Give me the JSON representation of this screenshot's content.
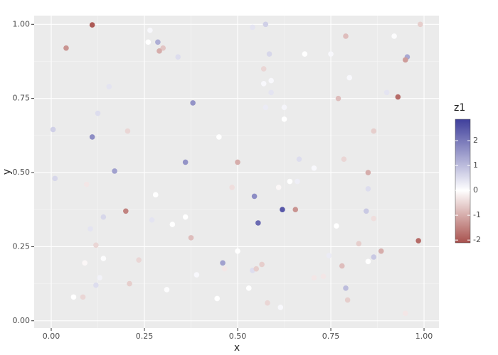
{
  "chart_data": {
    "type": "scatter",
    "xlabel": "x",
    "ylabel": "y",
    "x": [
      0.11,
      0.04,
      0.265,
      0.26,
      0.286,
      0.3,
      0.29,
      0.34,
      0.54,
      0.575,
      0.585,
      0.57,
      0.57,
      0.59,
      0.59,
      0.575,
      0.625,
      0.625,
      0.68,
      0.75,
      0.79,
      0.8,
      0.77,
      0.92,
      0.99,
      0.955,
      0.95,
      0.9,
      0.93,
      0.865,
      0.005,
      0.11,
      0.125,
      0.155,
      0.205,
      0.38,
      0.45,
      0.5,
      0.36,
      0.17,
      0.01,
      0.095,
      0.28,
      0.485,
      0.545,
      0.61,
      0.64,
      0.665,
      0.66,
      0.705,
      0.785,
      0.85,
      0.85,
      0.845,
      0.865,
      0.765,
      0.62,
      0.655,
      0.555,
      0.2,
      0.14,
      0.105,
      0.12,
      0.14,
      0.235,
      0.27,
      0.36,
      0.325,
      0.375,
      0.46,
      0.5,
      0.465,
      0.54,
      0.55,
      0.565,
      0.745,
      0.78,
      0.825,
      0.865,
      0.85,
      0.885,
      0.985,
      0.79,
      0.795,
      0.705,
      0.73,
      0.53,
      0.58,
      0.615,
      0.445,
      0.31,
      0.39,
      0.21,
      0.12,
      0.13,
      0.09,
      0.06,
      0.085,
      0.95
    ],
    "y": [
      0.998,
      0.92,
      0.98,
      0.94,
      0.94,
      0.92,
      0.91,
      0.89,
      0.99,
      1.0,
      0.9,
      0.85,
      0.8,
      0.81,
      0.77,
      0.72,
      0.72,
      0.68,
      0.9,
      0.9,
      0.96,
      0.82,
      0.75,
      0.96,
      1.0,
      0.89,
      0.88,
      0.77,
      0.755,
      0.64,
      0.645,
      0.62,
      0.7,
      0.79,
      0.64,
      0.735,
      0.62,
      0.535,
      0.535,
      0.505,
      0.48,
      0.46,
      0.425,
      0.45,
      0.42,
      0.45,
      0.47,
      0.545,
      0.47,
      0.515,
      0.545,
      0.5,
      0.445,
      0.37,
      0.345,
      0.32,
      0.375,
      0.375,
      0.33,
      0.37,
      0.35,
      0.31,
      0.255,
      0.21,
      0.205,
      0.34,
      0.35,
      0.325,
      0.28,
      0.195,
      0.235,
      0.175,
      0.17,
      0.175,
      0.19,
      0.22,
      0.185,
      0.26,
      0.215,
      0.2,
      0.235,
      0.27,
      0.11,
      0.07,
      0.145,
      0.15,
      0.11,
      0.06,
      0.045,
      0.075,
      0.105,
      0.155,
      0.125,
      0.12,
      0.145,
      0.195,
      0.08,
      0.08,
      0.025
    ],
    "z": [
      -2.0,
      -1.3,
      0.1,
      0,
      1.2,
      -0.7,
      -1.0,
      0.5,
      0.4,
      0.7,
      0.6,
      -0.5,
      0.1,
      0.1,
      0.4,
      0.3,
      0.15,
      0,
      0,
      0.1,
      -0.8,
      0.1,
      -0.8,
      0.05,
      -0.6,
      1.3,
      -1.2,
      0.4,
      -1.8,
      -0.6,
      0.7,
      1.7,
      0.5,
      0.4,
      -0.5,
      1.6,
      0,
      -1.0,
      1.6,
      1.4,
      0.6,
      -0.3,
      0,
      -0.4,
      1.7,
      -0.1,
      0,
      0.5,
      0.25,
      0.1,
      -0.5,
      -1.0,
      0.5,
      0.8,
      -0.4,
      0,
      2.5,
      -1.3,
      2.2,
      -1.5,
      0.6,
      0.4,
      -0.5,
      0.05,
      -0.5,
      0.4,
      0,
      0,
      -0.8,
      1.4,
      0,
      -0.3,
      0.5,
      -0.6,
      -0.6,
      0.3,
      -0.8,
      -0.6,
      0.8,
      0,
      -1.0,
      -1.8,
      1.0,
      -0.6,
      -0.3,
      -0.3,
      0,
      -0.5,
      0.1,
      0,
      0.05,
      0.1,
      -0.6,
      0.5,
      0.2,
      -0.1,
      0,
      -0.5,
      -0.3
    ],
    "xlim": [
      -0.0458,
      1.04
    ],
    "ylim": [
      -0.0245,
      1.0294
    ],
    "xticks": [
      {
        "value": 0,
        "label": "0.00"
      },
      {
        "value": 0.25,
        "label": "0.25"
      },
      {
        "value": 0.5,
        "label": "0.50"
      },
      {
        "value": 0.75,
        "label": "0.75"
      },
      {
        "value": 1,
        "label": "1.00"
      }
    ],
    "yticks": [
      {
        "value": 0,
        "label": "0.00"
      },
      {
        "value": 0.25,
        "label": "0.25"
      },
      {
        "value": 0.5,
        "label": "0.50"
      },
      {
        "value": 0.75,
        "label": "0.75"
      },
      {
        "value": 1,
        "label": "1.00"
      }
    ],
    "grid": true,
    "colorbar": {
      "title": "z1",
      "zlim": [
        -2.11,
        2.86
      ],
      "ticks": [
        -2,
        -1,
        0,
        1,
        2
      ],
      "low": "#a8514d",
      "mid": "#ffffff",
      "high": "#3f3f9b"
    }
  }
}
